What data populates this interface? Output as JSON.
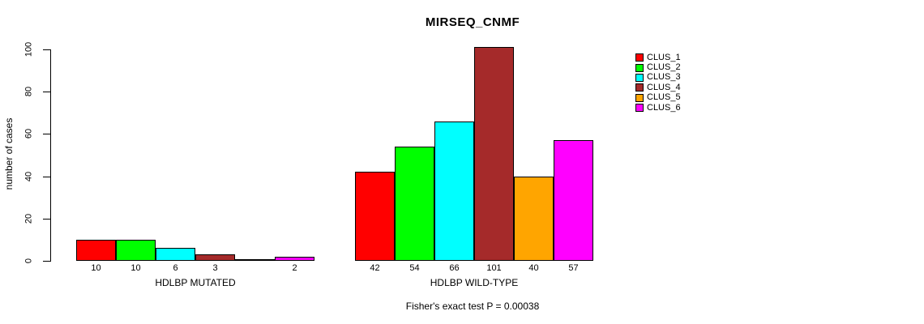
{
  "chart_data": {
    "type": "bar",
    "title": "MIRSEQ_CNMF",
    "ylabel": "number of cases",
    "ylim": [
      0,
      100
    ],
    "yticks": [
      0,
      20,
      40,
      60,
      80,
      100
    ],
    "grid": false,
    "legend_position": "right",
    "categories": [
      "HDLBP MUTATED",
      "HDLBP WILD-TYPE"
    ],
    "series": [
      {
        "name": "CLUS_1",
        "color": "#FF0000",
        "values": [
          10,
          42
        ]
      },
      {
        "name": "CLUS_2",
        "color": "#00FF00",
        "values": [
          10,
          54
        ]
      },
      {
        "name": "CLUS_3",
        "color": "#00FFFF",
        "values": [
          6,
          66
        ]
      },
      {
        "name": "CLUS_4",
        "color": "#A52A2A",
        "values": [
          3,
          101
        ]
      },
      {
        "name": "CLUS_5",
        "color": "#FFA500",
        "values": [
          0,
          40
        ]
      },
      {
        "name": "CLUS_6",
        "color": "#FF00FF",
        "values": [
          2,
          57
        ]
      }
    ],
    "bar_value_labels": [
      [
        "10",
        "10",
        "6",
        "3",
        "",
        "2"
      ],
      [
        "42",
        "54",
        "66",
        "101",
        "40",
        "57"
      ]
    ],
    "annotation": "Fisher's exact test P = 0.00038"
  }
}
